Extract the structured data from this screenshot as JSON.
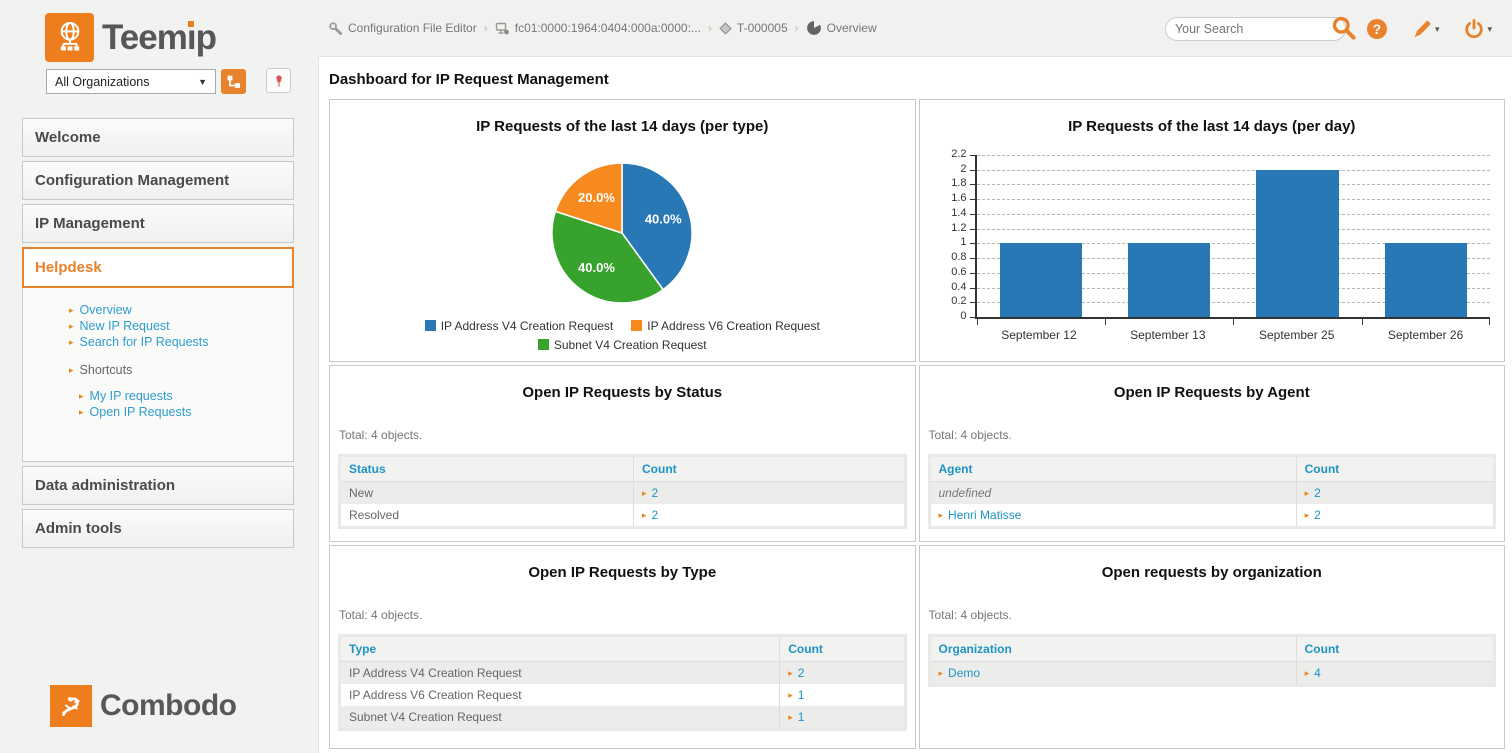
{
  "colors": {
    "accent_orange": "#e8822c",
    "link_blue": "#1c94c4",
    "pin_red": "#d9534f",
    "pie_blue": "#2878b5",
    "pie_orange": "#f68a1f",
    "pie_green": "#37a32d",
    "bar_blue": "#2878b5"
  },
  "header": {
    "breadcrumb": [
      {
        "icon": "wrench-icon",
        "label": "Configuration File Editor"
      },
      {
        "icon": "subnet-icon",
        "label": "fc01:0000:1964:0404:000a:0000:..."
      },
      {
        "icon": "request-icon",
        "label": "T-000005"
      },
      {
        "icon": "overview-icon",
        "label": "Overview"
      }
    ],
    "search_placeholder": "Your Search"
  },
  "sidebar": {
    "logo_text": "Teemip",
    "org_selector_value": "All Organizations",
    "menus": [
      {
        "label": "Welcome"
      },
      {
        "label": "Configuration Management"
      },
      {
        "label": "IP Management"
      },
      {
        "label": "Helpdesk"
      },
      {
        "label": "Data administration"
      },
      {
        "label": "Admin tools"
      }
    ],
    "helpdesk_submenu": {
      "links": [
        "Overview",
        "New IP Request",
        "Search for IP Requests"
      ],
      "shortcuts_label": "Shortcuts",
      "shortcut_links": [
        "My IP requests",
        "Open IP Requests"
      ]
    },
    "footer_logo_text": "Combodo"
  },
  "main": {
    "title": "Dashboard for IP Request Management",
    "panels": [
      {
        "type": "pie",
        "title": "IP Requests of the last 14 days (per type)"
      },
      {
        "type": "bar",
        "title": "IP Requests of the last 14 days (per day)"
      },
      {
        "type": "table",
        "title": "Open IP Requests by Status",
        "total": "Total: 4 objects.",
        "columns": [
          "Status",
          "Count"
        ],
        "col_split": 52,
        "rows": [
          {
            "label": "New",
            "style": "plain",
            "count": "2"
          },
          {
            "label": "Resolved",
            "style": "plain",
            "count": "2"
          }
        ]
      },
      {
        "type": "table",
        "title": "Open IP Requests by Agent",
        "total": "Total: 4 objects.",
        "columns": [
          "Agent",
          "Count"
        ],
        "col_split": 65,
        "rows": [
          {
            "label": "undefined",
            "style": "italic",
            "count": "2"
          },
          {
            "label": "Henri Matisse",
            "style": "link",
            "count": "2"
          }
        ]
      },
      {
        "type": "table",
        "title": "Open IP Requests by Type",
        "total": "Total: 4 objects.",
        "columns": [
          "Type",
          "Count"
        ],
        "col_split": 78,
        "rows": [
          {
            "label": "IP Address V4 Creation Request",
            "style": "plain",
            "count": "2"
          },
          {
            "label": "IP Address V6 Creation Request",
            "style": "plain",
            "count": "1"
          },
          {
            "label": "Subnet V4 Creation Request",
            "style": "plain",
            "count": "1"
          }
        ]
      },
      {
        "type": "table",
        "title": "Open requests by organization",
        "total": "Total: 4 objects.",
        "columns": [
          "Organization",
          "Count"
        ],
        "col_split": 65,
        "rows": [
          {
            "label": "Demo",
            "style": "link",
            "count": "4"
          }
        ]
      }
    ]
  },
  "chart_data": [
    {
      "type": "pie",
      "title": "IP Requests of the last 14 days (per type)",
      "slices": [
        {
          "label": "IP Address V4 Creation Request",
          "value": 40.0,
          "display": "40.0%",
          "color": "#2878b5"
        },
        {
          "label": "IP Address V6 Creation Request",
          "value": 20.0,
          "display": "20.0%",
          "color": "#f68a1f"
        },
        {
          "label": "Subnet V4 Creation Request",
          "value": 40.0,
          "display": "40.0%",
          "color": "#37a32d"
        }
      ],
      "draw_order": [
        0,
        2,
        1
      ],
      "start_angle_deg": 0,
      "direction": "clockwise",
      "legend_rows": [
        [
          0,
          1
        ],
        [
          2
        ]
      ]
    },
    {
      "type": "bar",
      "title": "IP Requests of the last 14 days (per day)",
      "categories": [
        "September 12",
        "September 13",
        "September 25",
        "September 26"
      ],
      "values": [
        1,
        1,
        2,
        1
      ],
      "ylim": [
        0,
        2.2
      ],
      "yticks": [
        0,
        0.2,
        0.4,
        0.6,
        0.8,
        1,
        1.2,
        1.4,
        1.6,
        1.8,
        2,
        2.2
      ],
      "ytick_labels": [
        "0",
        "0.2",
        "0.4",
        "0.6",
        "0.8",
        "1",
        "1.2",
        "1.4",
        "1.6",
        "1.8",
        "2",
        "2.2"
      ],
      "bar_color": "#2878b5",
      "grid": "dashed"
    }
  ]
}
